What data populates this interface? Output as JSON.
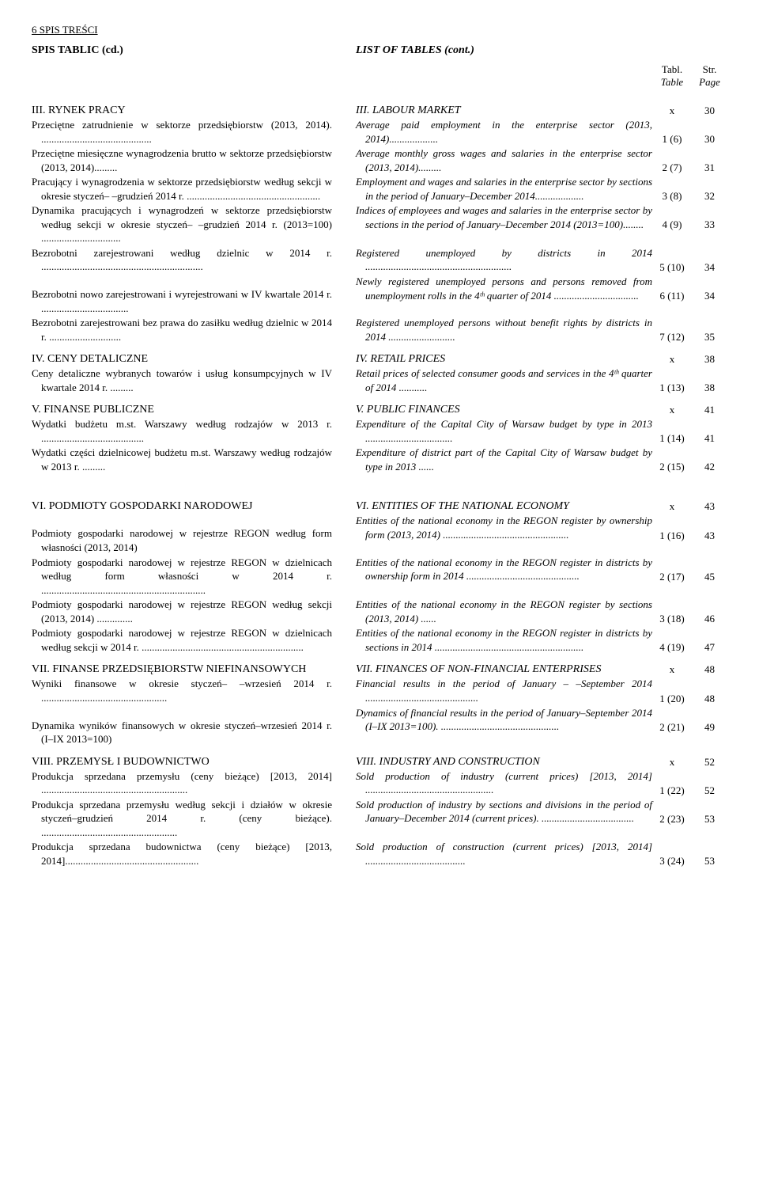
{
  "page_header": "6      SPIS TREŚCI",
  "title_left": "SPIS TABLIC (cd.)",
  "title_right": "LIST OF TABLES (cont.)",
  "col_tabl": "Tabl.",
  "col_str": "Str.",
  "col_table": "Table",
  "col_page": "Page",
  "sections": [
    {
      "left": "III. RYNEK PRACY",
      "right": "III. LABOUR MARKET",
      "tabl": "x",
      "page": "30",
      "entries": [
        {
          "left": "Przeciętne zatrudnienie w sektorze przedsię­biorstw (2013, 2014). ...........................................",
          "right": "Average paid employment in the enterprise sector (2013, 2014)...................",
          "tabl": "1 (6)",
          "page": "30"
        },
        {
          "left": "Przeciętne miesięczne wynagrodzenia brutto w sektorze przedsiębiorstw (2013, 2014).........",
          "right": "Average monthly gross wages and salaries in the enterprise sector (2013, 2014).........",
          "tabl": "2 (7)",
          "page": "31"
        },
        {
          "left": "Pracujący i wynagrodzenia w sektorze przedsię­biorstw według sekcji w okresie styczeń– –grudzień 2014 r. ....................................................",
          "right": "Employment and wages and salaries in the en­terprise sector by sections in the period of January–December 2014...................",
          "tabl": "3 (8)",
          "page": "32"
        },
        {
          "left": "Dynamika pracujących i wynagrodzeń w sektorze przedsiębiorstw według sekcji w okresie styczeń– –grudzień 2014 r. (2013=100) ...............................",
          "right": "Indices of employees and wages and salaries in the enterprise sector by sections in the period of January–December 2014 (2013=100)........",
          "tabl": "4 (9)",
          "page": "33"
        },
        {
          "left": "Bezrobotni zarejestrowani według dzielnic w 2014 r.  ...............................................................",
          "right": "Registered unemployed by districts in 2014 .........................................................",
          "tabl": "5 (10)",
          "page": "34"
        },
        {
          "left": "Bezrobotni nowo zarejestrowani i wyrejestro­wani w IV kwartale 2014 r. ..................................",
          "right": "Newly registered unemployed persons and per­sons removed from unemployment rolls in the 4ᵗʰ quarter of  2014 .................................",
          "tabl": "6 (11)",
          "page": "34",
          "gap_before": true
        },
        {
          "left": "Bezrobotni zarejestrowani bez prawa do zasił­ku według dzielnic w 2014 r.  ............................",
          "right": "Registered unemployed persons without ben­efit rights by districts in 2014 ..........................",
          "tabl": "7 (12)",
          "page": "35"
        }
      ]
    },
    {
      "left": "IV. CENY DETALICZNE",
      "right": "IV. RETAIL PRICES",
      "tabl": "x",
      "page": "38",
      "entries": [
        {
          "left": "Ceny detaliczne wybranych towarów i usług konsumpcyjnych w IV kwartale 2014 r. .........",
          "right": "Retail prices of selected consumer goods and services in the 4ᵗʰ quarter of  2014 ...........",
          "tabl": "1 (13)",
          "page": "38"
        }
      ]
    },
    {
      "left": "V. FINANSE PUBLICZNE",
      "right": "V. PUBLIC FINANCES",
      "tabl": "x",
      "page": "41",
      "entries": [
        {
          "left": "Wydatki budżetu m.st. Warszawy według rodzajów w 2013 r. ........................................",
          "right": "Expenditure of the Capital City of Warsaw budget by type in 2013 ..................................",
          "tabl": "1 (14)",
          "page": "41"
        },
        {
          "left": "Wydatki części dzielnicowej budżetu m.st. Warszawy według rodzajów w 2013 r. .........",
          "right": "Expenditure of district part of the Capital City of Warsaw budget by type in 2013 ......",
          "tabl": "2 (15)",
          "page": "42"
        }
      ]
    },
    {
      "left": "VI. PODMIOTY GOSPODARKI NARODOWEJ",
      "right": "VI. ENTITIES OF THE NATIONAL ECONOMY",
      "tabl": "x",
      "page": "43",
      "space_before": true,
      "entries": [
        {
          "left": "Podmioty gospodarki narodowej w rejestrze REGON według form własności (2013, 2014)",
          "right": "Entities of the national economy in the REGON register by ownership form (2013, 2014) .................................................",
          "tabl": "1 (16)",
          "page": "43",
          "gap_before": true
        },
        {
          "left": "Podmioty gospodarki narodowej w rejestrze REGON w dzielnicach według form własności w 2014 r. ................................................................",
          "right": "Entities of the national economy in the REGON register in districts by owner­ship form in 2014 ............................................",
          "tabl": "2 (17)",
          "page": "45"
        },
        {
          "left": "Podmioty gospodarki narodowej w rejestrze REGON według sekcji (2013, 2014) ..............",
          "right": "Entities of the national economy in the REGON register by sections (2013, 2014) ......",
          "tabl": "3 (18)",
          "page": "46"
        },
        {
          "left": "Podmioty gospodarki narodowej w rejestrze REGON w dzielnicach według sekcji w 2014 r. ...............................................................",
          "right": "Entities of the national economy in the REGON register in districts by sections  in 2014 ..........................................................",
          "tabl": "4 (19)",
          "page": "47"
        }
      ]
    },
    {
      "left": "VII. FINANSE PRZEDSIĘBIORSTW NIEFI­NANSOWYCH",
      "right": "VII. FINANCES OF NON-FINANCIAL ENTERPRISES",
      "tabl": "x",
      "page": "48",
      "multi": true,
      "entries": [
        {
          "left": "Wyniki finansowe w okresie styczeń– –wrzesień 2014 r. .................................................",
          "right": "Financial results in the period of January – –September 2014 ............................................",
          "tabl": "1 (20)",
          "page": "48"
        },
        {
          "left": "Dynamika wyników finansowych w okresie styczeń–wrzesień 2014 r. (I–IX 2013=100)",
          "right": "Dynamics of financial results in the period of January–September 2014 (I–IX 2013=100). ..............................................",
          "tabl": "2 (21)",
          "page": "49",
          "gap_before": true
        }
      ]
    },
    {
      "left": "VIII. PRZEMYSŁ I BUDOWNICTWO",
      "right": "VIII. INDUSTRY AND CONSTRUCTION",
      "tabl": "x",
      "page": "52",
      "entries": [
        {
          "left": "Produkcja sprzedana przemysłu (ceny bieżące) [2013, 2014] .........................................................",
          "right": "Sold production of industry (current prices) [2013, 2014] ..................................................",
          "tabl": "1 (22)",
          "page": "52"
        },
        {
          "left": "Produkcja sprzedana przemysłu według sekcji i działów w okresie styczeń–grudzień 2014 r. (ceny bieżące). .....................................................",
          "right": "Sold production of industry by sections and divi­sions in the period of January–December 2014 (current prices). ....................................",
          "tabl": "2 (23)",
          "page": "53"
        },
        {
          "left": "Produkcja sprzedana budownictwa (ceny bieżą­ce) [2013, 2014]....................................................",
          "right": "Sold production of  construction (current prices) [2013, 2014] .......................................",
          "tabl": "3 (24)",
          "page": "53"
        }
      ]
    }
  ]
}
